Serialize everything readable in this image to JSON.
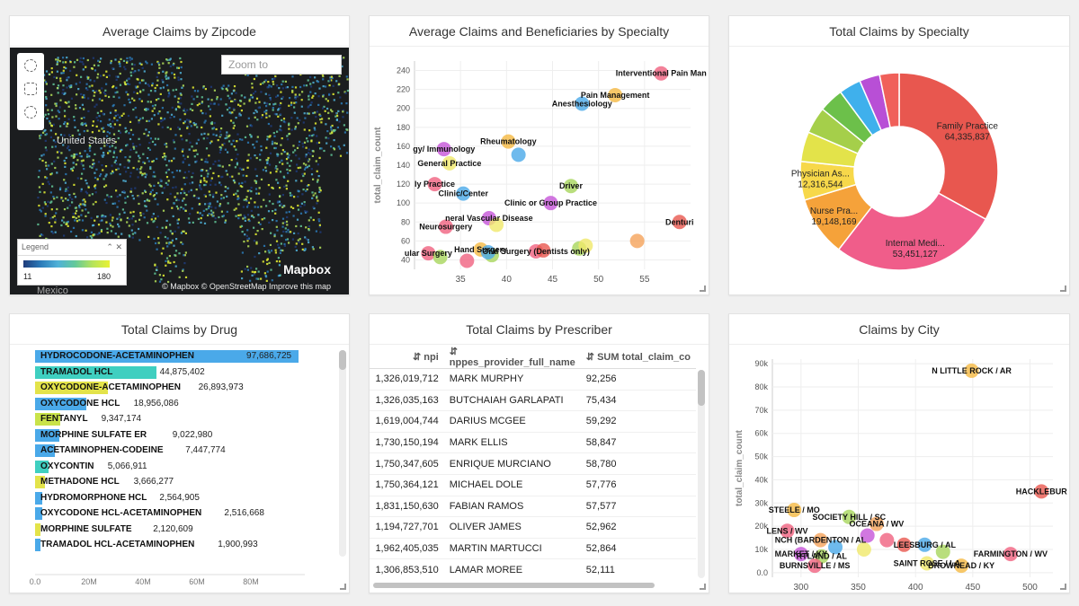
{
  "panels": {
    "map": {
      "title": "Average Claims by Zipcode"
    },
    "scatter1": {
      "title": "Average Claims and Beneficiaries by Specialty"
    },
    "donut": {
      "title": "Total Claims by Specialty"
    },
    "drug": {
      "title": "Total Claims by Drug"
    },
    "prescriber": {
      "title": "Total Claims by Prescriber"
    },
    "city": {
      "title": "Claims by City"
    }
  },
  "map": {
    "zoom_placeholder": "Zoom to",
    "legend_title": "Legend",
    "legend_min": "11",
    "legend_max": "180",
    "label_us": "United States",
    "label_mexico": "Mexico",
    "brand": "Mapbox",
    "attribution": "© Mapbox   © OpenStreetMap   Improve this map"
  },
  "chart_data": [
    {
      "type": "scatter",
      "xlabel": "bene_count",
      "ylabel": "total_claim_count",
      "xlim": [
        30,
        60
      ],
      "ylim": [
        30,
        250
      ],
      "xticks": [
        35,
        40,
        45,
        50,
        55
      ],
      "yticks": [
        40,
        60,
        80,
        100,
        120,
        140,
        160,
        180,
        200,
        220,
        240
      ],
      "points": [
        {
          "x": 56.8,
          "y": 237,
          "label": "Interventional Pain Man",
          "color": "#f0627f"
        },
        {
          "x": 51.8,
          "y": 214,
          "label": "Pain Management",
          "color": "#f5b942"
        },
        {
          "x": 48.2,
          "y": 205,
          "label": "Anesthesiology",
          "color": "#4aa9e9"
        },
        {
          "x": 40.2,
          "y": 165,
          "label": "Rheumatology",
          "color": "#f5b942"
        },
        {
          "x": 41.3,
          "y": 151,
          "label": "",
          "color": "#4aa9e9"
        },
        {
          "x": 33.2,
          "y": 157,
          "label": "gy/ Immunology",
          "color": "#c655d8"
        },
        {
          "x": 33.8,
          "y": 142,
          "label": "General Practice",
          "color": "#f0e86a"
        },
        {
          "x": 32.2,
          "y": 120,
          "label": "ly Practice",
          "color": "#f0627f"
        },
        {
          "x": 35.3,
          "y": 110,
          "label": "Clinic/Center",
          "color": "#4aa9e9"
        },
        {
          "x": 47.0,
          "y": 118,
          "label": "Driver",
          "color": "#a8d65c"
        },
        {
          "x": 44.8,
          "y": 100,
          "label": "Clinic or Group Practice",
          "color": "#c655d8"
        },
        {
          "x": 38.1,
          "y": 84,
          "label": "neral Vascular Disease",
          "color": "#c655d8"
        },
        {
          "x": 38.9,
          "y": 77,
          "label": "",
          "color": "#f0e86a"
        },
        {
          "x": 33.4,
          "y": 75,
          "label": "Neurosurgery",
          "color": "#f0627f"
        },
        {
          "x": 58.8,
          "y": 80,
          "label": "Denturi",
          "color": "#e8574f"
        },
        {
          "x": 54.2,
          "y": 60,
          "label": "",
          "color": "#f5a25a"
        },
        {
          "x": 43.2,
          "y": 49,
          "label": "Oral Surgery (Dentists only)",
          "color": "#f0627f"
        },
        {
          "x": 44.0,
          "y": 50,
          "label": "",
          "color": "#e8574f"
        },
        {
          "x": 47.9,
          "y": 52,
          "label": "",
          "color": "#a8d65c"
        },
        {
          "x": 48.6,
          "y": 55,
          "label": "",
          "color": "#f0e86a"
        },
        {
          "x": 37.2,
          "y": 51,
          "label": "Hand Surgery",
          "color": "#f5b942"
        },
        {
          "x": 38.4,
          "y": 45,
          "label": "",
          "color": "#a8d65c"
        },
        {
          "x": 38.0,
          "y": 48,
          "label": "",
          "color": "#4aa9e9"
        },
        {
          "x": 35.7,
          "y": 39,
          "label": "",
          "color": "#f0627f"
        },
        {
          "x": 31.5,
          "y": 47,
          "label": "ular Surgery",
          "color": "#f0627f"
        },
        {
          "x": 32.8,
          "y": 43,
          "label": "",
          "color": "#a8d65c"
        }
      ]
    },
    {
      "type": "pie",
      "title": "Total Claims by Specialty",
      "slices": [
        {
          "label": "Family Practice",
          "value": 64335837,
          "color": "#e8574f"
        },
        {
          "label": "Internal Medi...",
          "value": 53451127,
          "color": "#f05d8a"
        },
        {
          "label": "Nurse Pra...",
          "value": 19148169,
          "color": "#f5a23a"
        },
        {
          "label": "Physician As...",
          "value": 12316544,
          "color": "#f7d84a"
        },
        {
          "label": "",
          "value": 9500000,
          "color": "#e3e34a"
        },
        {
          "label": "",
          "value": 8500000,
          "color": "#a5cf4a"
        },
        {
          "label": "",
          "value": 7800000,
          "color": "#6cc04a"
        },
        {
          "label": "",
          "value": 7000000,
          "color": "#3fb0ec"
        },
        {
          "label": "",
          "value": 6500000,
          "color": "#b84fd6"
        },
        {
          "label": "",
          "value": 6200000,
          "color": "#f0605a"
        }
      ],
      "labels_shown": [
        "64,335,837",
        "53,451,127",
        "19,148,169",
        "12,316,544"
      ]
    },
    {
      "type": "bar",
      "title": "Total Claims by Drug",
      "xlim": [
        0,
        100000000
      ],
      "xticks": [
        "0.0",
        "20M",
        "40M",
        "60M",
        "80M"
      ],
      "categories": [
        "HYDROCODONE-ACETAMINOPHEN",
        "TRAMADOL HCL",
        "OXYCODONE-ACETAMINOPHEN",
        "OXYCODONE HCL",
        "FENTANYL",
        "MORPHINE SULFATE ER",
        "ACETAMINOPHEN-CODEINE",
        "OXYCONTIN",
        "METHADONE HCL",
        "HYDROMORPHONE HCL",
        "OXYCODONE HCL-ACETAMINOPHEN",
        "MORPHINE SULFATE",
        "TRAMADOL HCL-ACETAMINOPHEN"
      ],
      "values": [
        97686725,
        44875402,
        26893973,
        18956086,
        9347174,
        9022980,
        7447774,
        5066911,
        3666277,
        2564905,
        2516668,
        2120609,
        1900993
      ],
      "value_labels": [
        "97,686,725",
        "44,875,402",
        "26,893,973",
        "18,956,086",
        "9,347,174",
        "9,022,980",
        "7,447,774",
        "5,066,911",
        "3,666,277",
        "2,564,905",
        "2,516,668",
        "2,120,609",
        "1,900,993"
      ],
      "colors": [
        "#4aa9e9",
        "#3fcfc0",
        "#e3e34a",
        "#4aa9e9",
        "#c9e34a",
        "#4aa9e9",
        "#4aa9e9",
        "#3fcfc0",
        "#e3e34a",
        "#4aa9e9",
        "#4aa9e9",
        "#e3e34a",
        "#4aa9e9"
      ]
    },
    {
      "type": "table",
      "columns": [
        "npi",
        "nppes_provider_full_name",
        "SUM total_claim_co"
      ],
      "rows": [
        [
          "1,326,019,712",
          "MARK MURPHY",
          "92,256"
        ],
        [
          "1,326,035,163",
          "BUTCHAIAH GARLAPATI",
          "75,434"
        ],
        [
          "1,619,004,744",
          "DARIUS MCGEE",
          "59,292"
        ],
        [
          "1,730,150,194",
          "MARK ELLIS",
          "58,847"
        ],
        [
          "1,750,347,605",
          "ENRIQUE MURCIANO",
          "58,780"
        ],
        [
          "1,750,364,121",
          "MICHAEL DOLE",
          "57,776"
        ],
        [
          "1,831,150,630",
          "FABIAN RAMOS",
          "57,577"
        ],
        [
          "1,194,727,701",
          "OLIVER JAMES",
          "52,962"
        ],
        [
          "1,962,405,035",
          "MARTIN MARTUCCI",
          "52,864"
        ],
        [
          "1,306,853,510",
          "LAMAR MOREE",
          "52,111"
        ]
      ]
    },
    {
      "type": "scatter",
      "xlabel": "average_claim_count",
      "ylabel": "total_claim_count",
      "xlim": [
        275,
        520
      ],
      "ylim": [
        -2000,
        92000
      ],
      "xticks": [
        300,
        350,
        400,
        450,
        500
      ],
      "yticks": [
        "0.0",
        "10k",
        "20k",
        "30k",
        "40k",
        "50k",
        "60k",
        "70k",
        "80k",
        "90k"
      ],
      "ytick_values": [
        0,
        10000,
        20000,
        30000,
        40000,
        50000,
        60000,
        70000,
        80000,
        90000
      ],
      "points": [
        {
          "x": 449,
          "y": 87000,
          "label": "N LITTLE ROCK / AR",
          "color": "#f5b942"
        },
        {
          "x": 510,
          "y": 35000,
          "label": "HACKLEBUR",
          "color": "#e8574f"
        },
        {
          "x": 483,
          "y": 8000,
          "label": "FARMINGTON / WV",
          "color": "#f0627f"
        },
        {
          "x": 294,
          "y": 27000,
          "label": "STEELE / MO",
          "color": "#f5b942"
        },
        {
          "x": 342,
          "y": 24000,
          "label": "SOCIETY HILL / SC",
          "color": "#a8d65c"
        },
        {
          "x": 288,
          "y": 18000,
          "label": "LENS / WV",
          "color": "#f0627f"
        },
        {
          "x": 366,
          "y": 21000,
          "label": "OCEANA / WV",
          "color": "#f5a25a"
        },
        {
          "x": 317,
          "y": 14000,
          "label": "NCH (BARDENTON / AL",
          "color": "#f5a25a"
        },
        {
          "x": 358,
          "y": 16000,
          "label": "",
          "color": "#c655d8"
        },
        {
          "x": 375,
          "y": 14000,
          "label": "",
          "color": "#f0627f"
        },
        {
          "x": 408,
          "y": 12000,
          "label": "LEESBURG / AL",
          "color": "#4aa9e9"
        },
        {
          "x": 424,
          "y": 9000,
          "label": "",
          "color": "#a8d65c"
        },
        {
          "x": 300,
          "y": 8000,
          "label": "MARKET / KY",
          "color": "#c655d8"
        },
        {
          "x": 318,
          "y": 7000,
          "label": "RTLAND / AL",
          "color": "#a8d65c"
        },
        {
          "x": 312,
          "y": 3000,
          "label": "BURNSVILLE / MS",
          "color": "#f0627f"
        },
        {
          "x": 410,
          "y": 4000,
          "label": "SAINT ROSE / LA",
          "color": "#f0e86a"
        },
        {
          "x": 440,
          "y": 3000,
          "label": "BROWNEAD / KY",
          "color": "#f5b942"
        },
        {
          "x": 330,
          "y": 11000,
          "label": "",
          "color": "#4aa9e9"
        },
        {
          "x": 355,
          "y": 10000,
          "label": "",
          "color": "#f0e86a"
        },
        {
          "x": 390,
          "y": 12000,
          "label": "",
          "color": "#e8574f"
        }
      ]
    }
  ]
}
